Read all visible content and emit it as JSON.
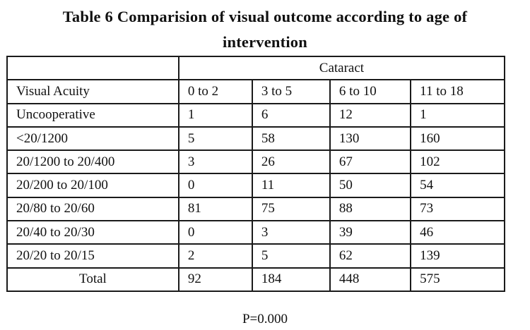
{
  "title": {
    "line1": "Table 6 Comparision of visual outcome according to age of",
    "line2": "intervention"
  },
  "table": {
    "group_header": "Cataract",
    "columns": [
      "Visual Acuity",
      "0 to 2",
      "3 to 5",
      "6 to 10",
      "11 to 18"
    ],
    "rows": [
      [
        "Uncooperative",
        "1",
        "6",
        "12",
        "1"
      ],
      [
        "<20/1200",
        "5",
        "58",
        "130",
        "160"
      ],
      [
        "20/1200  to 20/400",
        "3",
        "26",
        "67",
        "102"
      ],
      [
        "20/200 to 20/100",
        "0",
        "11",
        "50",
        "54"
      ],
      [
        "20/80  to 20/60",
        "81",
        "75",
        "88",
        "73"
      ],
      [
        "20/40 to 20/30",
        "0",
        "3",
        "39",
        "46"
      ],
      [
        "20/20  to 20/15",
        "2",
        "5",
        "62",
        "139"
      ]
    ],
    "total_row": [
      "Total",
      "92",
      "184",
      "448",
      "575"
    ]
  },
  "footer": {
    "p_value": "P=0.000"
  }
}
